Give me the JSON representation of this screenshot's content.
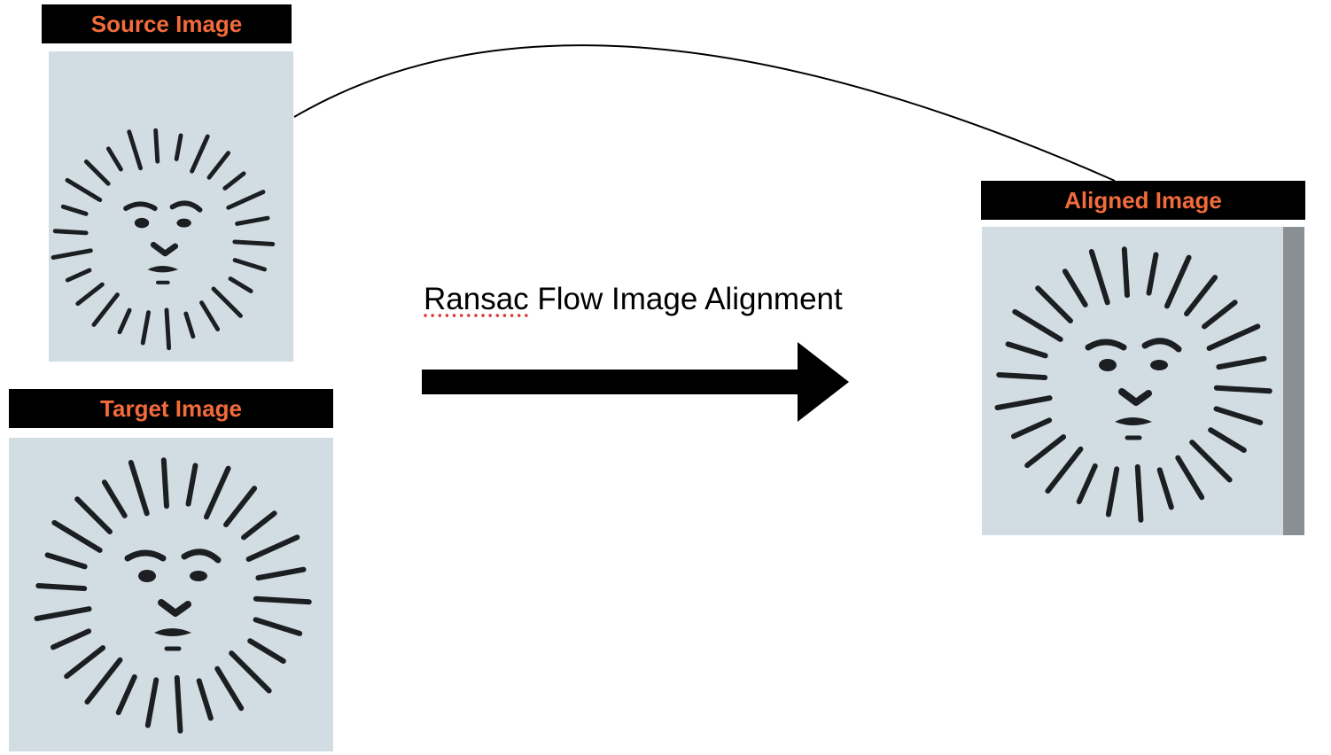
{
  "labels": {
    "source": "Source Image",
    "target": "Target Image",
    "aligned": "Aligned Image"
  },
  "caption": {
    "first_word": "Ransac",
    "rest": " Flow Image Alignment"
  },
  "icons": {
    "sun_face": "sun-face-stamp-icon",
    "arrow": "right-arrow-icon",
    "connector": "curved-connector-line"
  },
  "colors": {
    "label_bg": "#000000",
    "label_text": "#f26b3a",
    "panel_bg": "#d2dde3",
    "ink": "#1c1f22",
    "spellcheck": "#d9302a"
  }
}
